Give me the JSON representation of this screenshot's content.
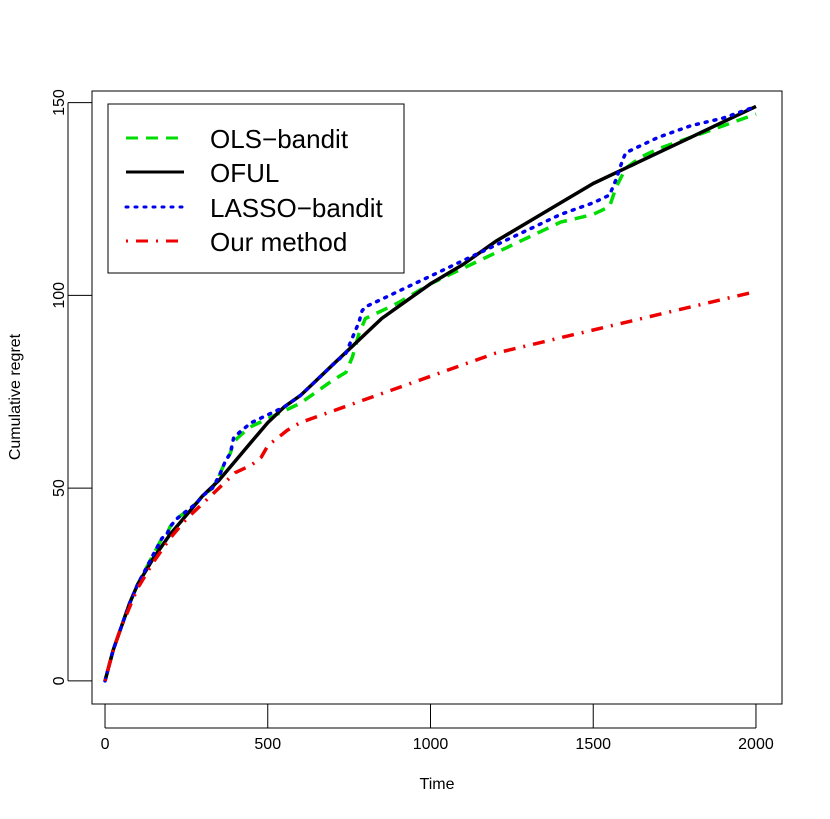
{
  "chart_data": {
    "type": "line",
    "title": "",
    "xlabel": "Time",
    "ylabel": "Cumulative regret",
    "xlim": [
      -40,
      2080
    ],
    "ylim": [
      -6,
      153
    ],
    "x_ticks": [
      0,
      500,
      1000,
      1500,
      2000
    ],
    "x_tick_labels": [
      "0",
      "500",
      "1000",
      "1500",
      "2000"
    ],
    "y_ticks": [
      0,
      50,
      100,
      150
    ],
    "y_tick_labels": [
      "0",
      "50",
      "100",
      "150"
    ],
    "grid": false,
    "legend_position": "top-left",
    "series": [
      {
        "name": "OLS−bandit",
        "color": "#00dd00",
        "dash": "dashed",
        "x": [
          0,
          25,
          50,
          75,
          100,
          125,
          150,
          175,
          190,
          200,
          220,
          250,
          280,
          300,
          330,
          350,
          370,
          385,
          395,
          420,
          450,
          500,
          550,
          600,
          650,
          700,
          740,
          760,
          780,
          800,
          850,
          900,
          1000,
          1100,
          1200,
          1300,
          1400,
          1500,
          1550,
          1570,
          1600,
          1650,
          1700,
          1800,
          1900,
          2000
        ],
        "y": [
          0,
          8,
          14,
          20,
          25,
          29,
          33,
          37,
          38,
          40,
          42,
          44,
          46,
          48,
          50,
          53,
          57,
          59,
          62,
          64,
          66,
          68,
          70,
          72,
          75,
          78,
          80,
          84,
          90,
          94,
          96,
          98,
          103,
          107,
          111,
          115,
          119,
          121,
          123,
          128,
          133,
          136,
          138,
          141,
          144,
          147
        ]
      },
      {
        "name": "OFUL",
        "color": "#000000",
        "dash": "solid",
        "x": [
          0,
          25,
          50,
          75,
          100,
          150,
          200,
          250,
          300,
          350,
          400,
          450,
          500,
          550,
          600,
          650,
          700,
          750,
          800,
          850,
          900,
          1000,
          1100,
          1200,
          1300,
          1400,
          1500,
          1600,
          1700,
          1800,
          1900,
          2000
        ],
        "y": [
          0,
          8,
          14,
          20,
          25,
          32,
          38,
          43,
          48,
          52,
          57,
          62,
          67,
          71,
          74,
          78,
          82,
          86,
          90,
          94,
          97,
          103,
          108,
          114,
          119,
          124,
          129,
          133,
          137,
          141,
          145,
          149
        ]
      },
      {
        "name": "LASSO−bandit",
        "color": "#0000ee",
        "dash": "dotted",
        "x": [
          0,
          25,
          50,
          75,
          100,
          125,
          150,
          175,
          190,
          200,
          220,
          250,
          280,
          300,
          330,
          350,
          370,
          385,
          395,
          420,
          450,
          500,
          550,
          600,
          650,
          700,
          740,
          760,
          780,
          790,
          800,
          850,
          900,
          1000,
          1100,
          1200,
          1300,
          1400,
          1500,
          1550,
          1570,
          1590,
          1600,
          1650,
          1700,
          1800,
          1900,
          2000
        ],
        "y": [
          0,
          8,
          14,
          20,
          25,
          29,
          33,
          37,
          38,
          40,
          42,
          44,
          46,
          48,
          50,
          53,
          57,
          59,
          63,
          65,
          67,
          69,
          71,
          74,
          78,
          82,
          85,
          89,
          93,
          96,
          97,
          99,
          101,
          105,
          109,
          113,
          117,
          121,
          124,
          126,
          130,
          135,
          137,
          139,
          141,
          144,
          146,
          149
        ]
      },
      {
        "name": "Our method",
        "color": "#ee0000",
        "dash": "dotdash",
        "x": [
          0,
          25,
          50,
          75,
          100,
          150,
          200,
          250,
          300,
          350,
          400,
          450,
          480,
          500,
          530,
          560,
          600,
          700,
          800,
          900,
          1000,
          1100,
          1200,
          1300,
          1400,
          1500,
          1600,
          1700,
          1800,
          1900,
          2000
        ],
        "y": [
          0,
          8,
          14,
          19,
          24,
          31,
          37,
          42,
          46,
          50,
          54,
          56,
          58,
          61,
          63,
          65,
          67,
          70,
          73,
          76,
          79,
          82,
          85,
          87,
          89,
          91,
          93,
          95,
          97,
          99,
          101
        ]
      }
    ]
  }
}
